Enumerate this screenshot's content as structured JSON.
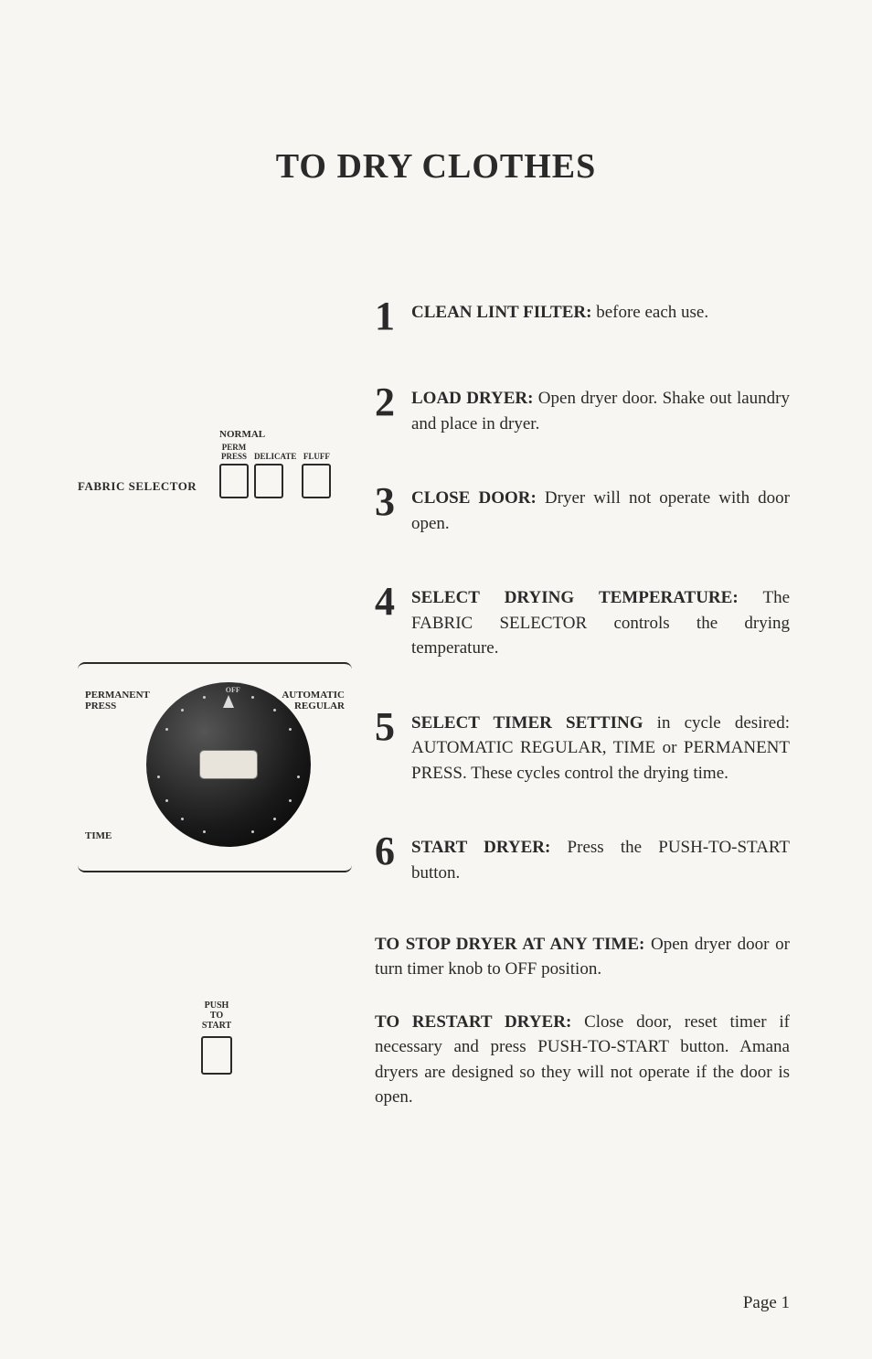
{
  "title": "TO DRY CLOTHES",
  "steps": [
    {
      "num": "1",
      "bold": "CLEAN LINT FILTER:",
      "rest": " before each use."
    },
    {
      "num": "2",
      "bold": "LOAD DRYER:",
      "rest": " Open dryer door. Shake out laundry and place in dryer."
    },
    {
      "num": "3",
      "bold": "CLOSE DOOR:",
      "rest": " Dryer will not operate with door open."
    },
    {
      "num": "4",
      "bold": "SELECT DRYING TEMPERATURE:",
      "rest": " The FABRIC SELECTOR controls the drying temperature."
    },
    {
      "num": "5",
      "bold": "SELECT TIMER SETTING",
      "rest": " in cycle desired: AUTOMATIC REGULAR, TIME or PERMANENT PRESS. These cycles control the drying time."
    },
    {
      "num": "6",
      "bold": "START DRYER:",
      "rest": " Press the PUSH-TO-START button."
    }
  ],
  "extras": [
    {
      "bold": "TO STOP DRYER AT ANY TIME:",
      "rest": " Open dryer door or turn timer knob to OFF position."
    },
    {
      "bold": "TO RESTART DRYER:",
      "rest": " Close door, reset timer if necessary and press PUSH-TO-START button. Amana dryers are designed so they will not operate if the door is open."
    }
  ],
  "fabricSelector": {
    "label": "FABRIC SELECTOR",
    "topLabel": "NORMAL",
    "buttons": [
      {
        "label": "PERM\nPRESS"
      },
      {
        "label": "DELICATE"
      },
      {
        "label": "FLUFF"
      }
    ]
  },
  "dial": {
    "leftTop": "PERMANENT\nPRESS",
    "leftBot": "TIME",
    "rightTop": "AUTOMATIC\nREGULAR",
    "off": "OFF",
    "dotAngles": [
      20,
      40,
      60,
      100,
      120,
      140,
      160,
      200,
      220,
      240,
      260,
      300,
      320,
      340
    ]
  },
  "pushStart": {
    "label": "PUSH\nTO\nSTART"
  },
  "pageNum": "Page 1",
  "colors": {
    "bg": "#f8f6f2",
    "ink": "#2a2a2a",
    "dialDark": "#1a1a1a",
    "dialLight": "#ccc"
  },
  "typography": {
    "titleSize": 38,
    "bodySize": 19,
    "stepNumSize": 44,
    "smallLabelSize": 11
  }
}
